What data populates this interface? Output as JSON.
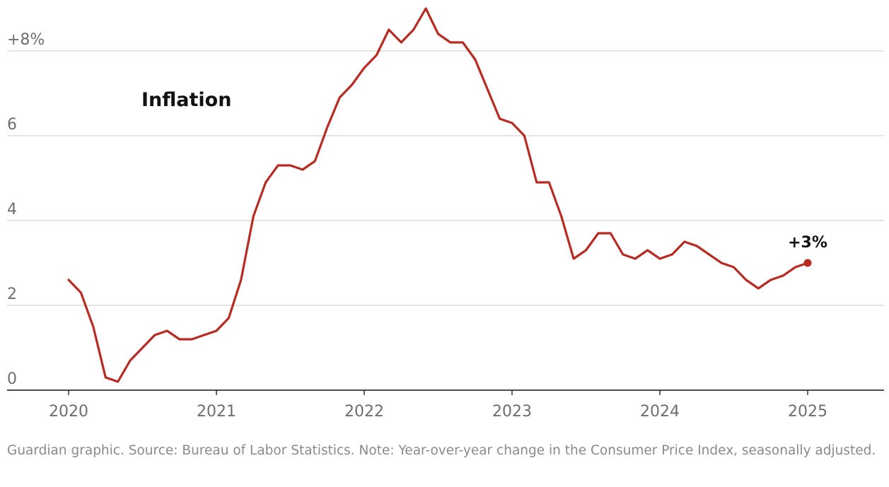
{
  "chart_data": {
    "type": "line",
    "title": "Inflation",
    "xlabel": "",
    "ylabel": "",
    "xlim": [
      "2020-01",
      "2025-06"
    ],
    "ylim": [
      0,
      8
    ],
    "y_ticks": [
      0,
      2,
      4,
      6,
      8
    ],
    "y_tick_labels": [
      "0",
      "2",
      "4",
      "6",
      "+8%"
    ],
    "x_ticks": [
      "2020-01",
      "2021-01",
      "2022-01",
      "2023-01",
      "2024-01",
      "2025-01"
    ],
    "x_tick_labels": [
      "2020",
      "2021",
      "2022",
      "2023",
      "2024",
      "2025"
    ],
    "grid": "horizontal",
    "series_color": "#b82b22",
    "series": [
      {
        "x": [
          "2020-01",
          "2020-02",
          "2020-03",
          "2020-04",
          "2020-05",
          "2020-06",
          "2020-07",
          "2020-08",
          "2020-09",
          "2020-10",
          "2020-11",
          "2020-12",
          "2021-01",
          "2021-02",
          "2021-03",
          "2021-04",
          "2021-05",
          "2021-06",
          "2021-07",
          "2021-08",
          "2021-09",
          "2021-10",
          "2021-11",
          "2021-12",
          "2022-01",
          "2022-02",
          "2022-03",
          "2022-04",
          "2022-05",
          "2022-06",
          "2022-07",
          "2022-08",
          "2022-09",
          "2022-10",
          "2022-11",
          "2022-12",
          "2023-01",
          "2023-02",
          "2023-03",
          "2023-04",
          "2023-05",
          "2023-06",
          "2023-07",
          "2023-08",
          "2023-09",
          "2023-10",
          "2023-11",
          "2023-12",
          "2024-01",
          "2024-02",
          "2024-03",
          "2024-04",
          "2024-05",
          "2024-06",
          "2024-07",
          "2024-08",
          "2024-09",
          "2024-10",
          "2024-11",
          "2024-12",
          "2025-01"
        ],
        "values": [
          2.6,
          2.3,
          1.5,
          0.3,
          0.2,
          0.7,
          1.0,
          1.3,
          1.4,
          1.2,
          1.2,
          1.3,
          1.4,
          1.7,
          2.6,
          4.1,
          4.9,
          5.3,
          5.3,
          5.2,
          5.4,
          6.2,
          6.9,
          7.2,
          7.6,
          7.9,
          8.5,
          8.2,
          8.5,
          9.0,
          8.4,
          8.2,
          8.2,
          7.8,
          7.1,
          6.4,
          6.3,
          6.0,
          4.9,
          4.9,
          4.1,
          3.1,
          3.3,
          3.7,
          3.7,
          3.2,
          3.1,
          3.3,
          3.1,
          3.2,
          3.5,
          3.4,
          3.2,
          3.0,
          2.9,
          2.6,
          2.4,
          2.6,
          2.7,
          2.9,
          3.0
        ]
      }
    ],
    "end_label": "+3%"
  },
  "footer": {
    "source": "Guardian graphic. Source: Bureau of Labor Statistics. Note: Year-over-year change in the Consumer Price Index, seasonally adjusted."
  }
}
